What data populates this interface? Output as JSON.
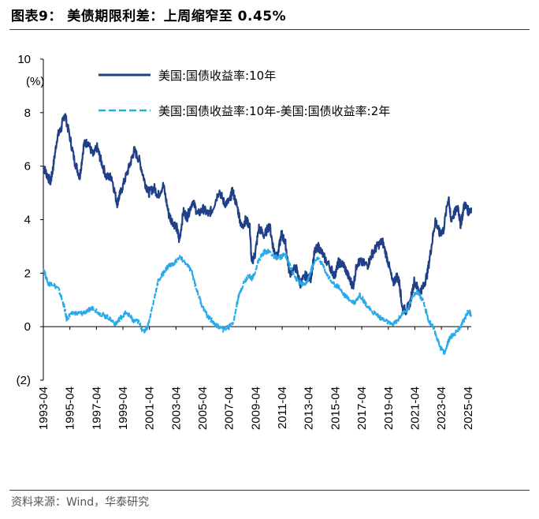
{
  "header": {
    "title": "图表9：  美债期限利差：上周缩窄至 0.45%"
  },
  "footer": {
    "source": "资料来源：Wind，华泰研究"
  },
  "chart_data": {
    "type": "line",
    "title": "美债期限利差：上周缩窄至 0.45%",
    "ylabel": "(%)",
    "ylim": [
      -2,
      10
    ],
    "y_ticks": [
      "10",
      "8",
      "6",
      "4",
      "2",
      "0",
      "(2)"
    ],
    "y_tick_values": [
      10,
      8,
      6,
      4,
      2,
      0,
      -2
    ],
    "x_tick_labels": [
      "1993-04",
      "1995-04",
      "1997-04",
      "1999-04",
      "2001-04",
      "2003-04",
      "2005-04",
      "2007-04",
      "2009-04",
      "2011-04",
      "2013-04",
      "2015-04",
      "2017-04",
      "2019-04",
      "2021-04",
      "2023-04",
      "2025-04"
    ],
    "x_tick_values": [
      1993.25,
      1995.25,
      1997.25,
      1999.25,
      2001.25,
      2003.25,
      2005.25,
      2007.25,
      2009.25,
      2011.25,
      2013.25,
      2015.25,
      2017.25,
      2019.25,
      2021.25,
      2023.25,
      2025.25
    ],
    "xlim": [
      1993.25,
      2025.5
    ],
    "series": [
      {
        "name": "美国:国债收益率:10年",
        "color": "#1f3f86",
        "style": "solid",
        "x": [
          1993.25,
          1993.5,
          1993.8,
          1994.0,
          1994.3,
          1994.6,
          1994.85,
          1995.2,
          1995.6,
          1996.0,
          1996.3,
          1996.6,
          1997.0,
          1997.3,
          1997.6,
          1998.0,
          1998.4,
          1998.8,
          1999.0,
          1999.4,
          1999.8,
          2000.1,
          2000.5,
          2000.9,
          2001.2,
          2001.6,
          2001.9,
          2002.3,
          2002.7,
          2002.9,
          2003.3,
          2003.5,
          2003.8,
          2004.1,
          2004.5,
          2004.9,
          2005.3,
          2005.7,
          2006.0,
          2006.5,
          2006.9,
          2007.3,
          2007.5,
          2007.9,
          2008.2,
          2008.5,
          2008.8,
          2008.95,
          2009.2,
          2009.5,
          2009.9,
          2010.3,
          2010.6,
          2010.9,
          2011.2,
          2011.5,
          2011.8,
          2012.3,
          2012.6,
          2013.0,
          2013.4,
          2013.7,
          2014.0,
          2014.4,
          2014.9,
          2015.2,
          2015.5,
          2015.9,
          2016.3,
          2016.6,
          2016.9,
          2017.2,
          2017.7,
          2018.0,
          2018.4,
          2018.8,
          2019.2,
          2019.6,
          2019.9,
          2020.1,
          2020.3,
          2020.6,
          2020.9,
          2021.2,
          2021.6,
          2021.9,
          2022.2,
          2022.5,
          2022.8,
          2023.1,
          2023.4,
          2023.8,
          2023.95,
          2024.2,
          2024.5,
          2024.7,
          2025.0,
          2025.3,
          2025.5
        ],
        "values": [
          6.0,
          5.7,
          5.4,
          6.0,
          7.1,
          7.4,
          8.0,
          7.2,
          6.2,
          5.6,
          6.8,
          6.9,
          6.4,
          6.7,
          6.2,
          5.6,
          5.6,
          4.6,
          4.9,
          5.5,
          6.1,
          6.6,
          6.2,
          5.4,
          5.0,
          5.2,
          4.9,
          5.3,
          4.2,
          4.0,
          3.7,
          3.2,
          4.3,
          4.1,
          4.7,
          4.2,
          4.4,
          4.2,
          4.4,
          5.1,
          4.6,
          4.7,
          5.1,
          4.4,
          3.7,
          4.0,
          3.8,
          2.4,
          2.7,
          3.7,
          3.4,
          3.8,
          2.9,
          2.6,
          3.5,
          3.1,
          2.0,
          2.2,
          1.6,
          1.9,
          1.8,
          2.8,
          3.0,
          2.6,
          2.2,
          1.9,
          2.4,
          2.3,
          1.8,
          1.5,
          2.4,
          2.4,
          2.3,
          2.7,
          3.0,
          3.2,
          2.5,
          1.6,
          1.9,
          1.6,
          0.7,
          0.6,
          0.9,
          1.7,
          1.3,
          1.5,
          2.0,
          3.0,
          4.0,
          3.5,
          3.6,
          4.9,
          4.0,
          4.2,
          4.5,
          3.8,
          4.6,
          4.3,
          4.45
        ]
      },
      {
        "name": "美国:国债收益率:10年-美国:国债收益率:2年",
        "color": "#2baaea",
        "style": "dashed",
        "x": [
          1993.25,
          1993.6,
          1994.0,
          1994.4,
          1994.8,
          1995.0,
          1995.4,
          1995.8,
          1996.2,
          1996.6,
          1997.0,
          1997.5,
          1997.9,
          1998.3,
          1998.7,
          1999.0,
          1999.4,
          1999.8,
          2000.0,
          2000.4,
          2000.8,
          2001.1,
          2001.5,
          2001.9,
          2002.3,
          2002.7,
          2003.0,
          2003.5,
          2003.9,
          2004.4,
          2004.8,
          2005.2,
          2005.6,
          2006.0,
          2006.4,
          2006.8,
          2007.2,
          2007.6,
          2007.9,
          2008.3,
          2008.7,
          2009.0,
          2009.5,
          2009.9,
          2010.3,
          2010.7,
          2011.1,
          2011.5,
          2011.9,
          2012.3,
          2012.7,
          2013.1,
          2013.5,
          2013.9,
          2014.3,
          2014.7,
          2015.1,
          2015.5,
          2015.9,
          2016.3,
          2016.7,
          2017.1,
          2017.5,
          2017.9,
          2018.3,
          2018.7,
          2019.1,
          2019.5,
          2019.9,
          2020.3,
          2020.7,
          2021.1,
          2021.5,
          2021.9,
          2022.3,
          2022.6,
          2022.9,
          2023.2,
          2023.5,
          2023.8,
          2024.1,
          2024.4,
          2024.7,
          2025.0,
          2025.3,
          2025.5
        ],
        "values": [
          2.2,
          1.6,
          1.6,
          1.4,
          0.8,
          0.3,
          0.5,
          0.5,
          0.5,
          0.6,
          0.7,
          0.5,
          0.4,
          0.3,
          0.1,
          0.3,
          0.5,
          0.4,
          0.2,
          0.2,
          -0.2,
          0.0,
          0.8,
          1.7,
          2.0,
          2.3,
          2.3,
          2.6,
          2.4,
          2.1,
          1.4,
          0.8,
          0.4,
          0.2,
          0.0,
          -0.1,
          0.0,
          0.2,
          1.0,
          1.6,
          1.9,
          1.8,
          2.5,
          2.8,
          2.8,
          2.6,
          2.6,
          2.7,
          2.2,
          1.8,
          1.6,
          1.6,
          2.2,
          2.6,
          2.3,
          1.9,
          1.6,
          1.5,
          1.2,
          1.0,
          0.9,
          1.2,
          0.9,
          0.6,
          0.5,
          0.3,
          0.2,
          0.1,
          0.2,
          0.5,
          0.6,
          1.2,
          1.3,
          0.9,
          0.2,
          0.0,
          -0.4,
          -0.8,
          -1.0,
          -0.5,
          -0.3,
          -0.2,
          0.0,
          0.3,
          0.6,
          0.45
        ]
      }
    ],
    "legend": [
      {
        "label": "美国:国债收益率:10年",
        "color": "#1f3f86",
        "style": "solid"
      },
      {
        "label": "美国:国债收益率:10年-美国:国债收益率:2年",
        "color": "#2baaea",
        "style": "dashed"
      }
    ],
    "legend_placement": "top"
  }
}
